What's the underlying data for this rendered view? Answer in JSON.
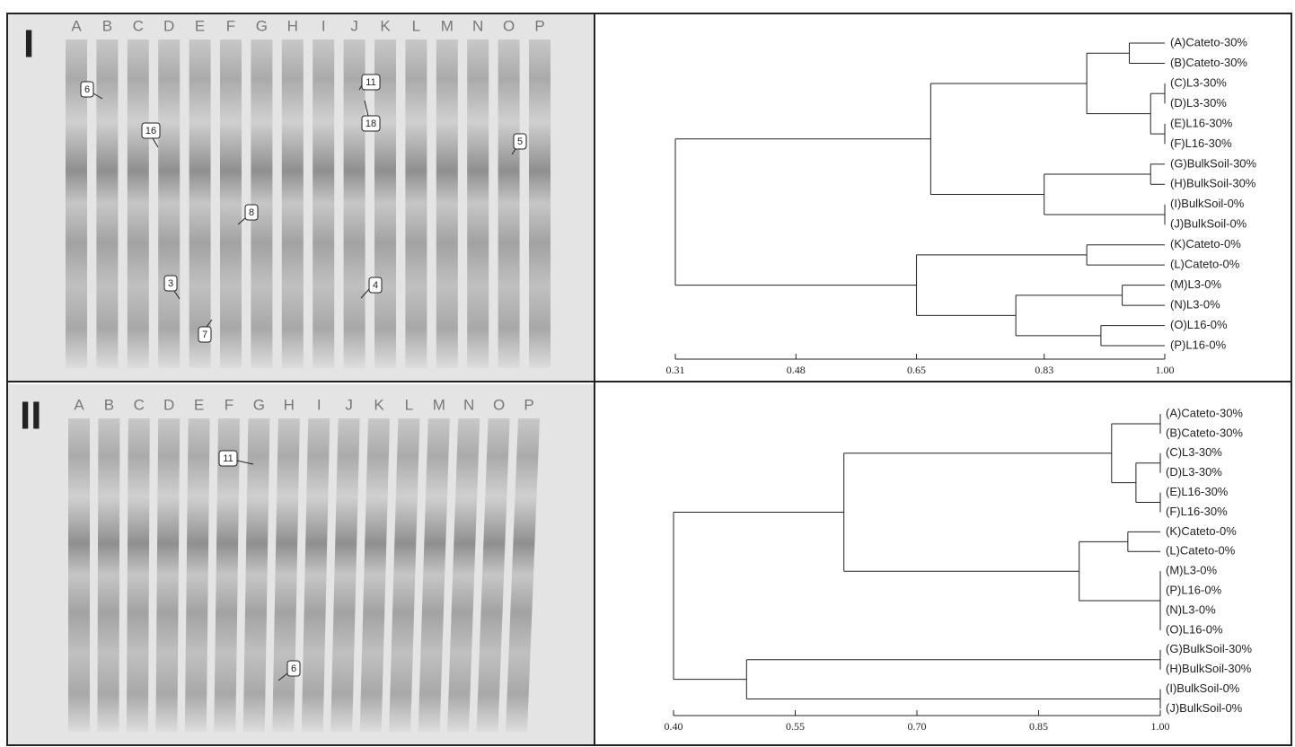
{
  "panels": [
    {
      "label": "I",
      "lanes": [
        "A",
        "B",
        "C",
        "D",
        "E",
        "F",
        "G",
        "H",
        "I",
        "J",
        "K",
        "L",
        "M",
        "N",
        "O",
        "P"
      ],
      "bands": [
        "6",
        "16",
        "11",
        "18",
        "5",
        "8",
        "3",
        "4",
        "7"
      ]
    },
    {
      "label": "II",
      "lanes": [
        "A",
        "B",
        "C",
        "D",
        "E",
        "F",
        "G",
        "H",
        "I",
        "J",
        "K",
        "L",
        "M",
        "N",
        "O",
        "P"
      ],
      "bands": [
        "11",
        "6"
      ]
    }
  ],
  "chart_data": [
    {
      "type": "dendrogram",
      "tree": {
        "value": 0.31,
        "children": [
          {
            "value": 0.67,
            "children": [
              {
                "value": 0.89,
                "children": [
                  {
                    "value": 0.95,
                    "children": [
                      "(A)Cateto-30%",
                      "(B)Cateto-30%"
                    ]
                  },
                  {
                    "value": 0.98,
                    "children": [
                      {
                        "value": 1,
                        "children": [
                          "(C)L3-30%",
                          "(D)L3-30%"
                        ]
                      },
                      {
                        "value": 1,
                        "children": [
                          "(E)L16-30%",
                          "(F)L16-30%"
                        ]
                      }
                    ]
                  }
                ]
              },
              {
                "value": 0.83,
                "children": [
                  {
                    "value": 0.98,
                    "children": [
                      "(G)BulkSoil-30%",
                      "(H)BulkSoil-30%"
                    ]
                  },
                  {
                    "value": 1,
                    "children": [
                      "(I)BulkSoil-0%",
                      "(J)BulkSoil-0%"
                    ]
                  }
                ]
              }
            ]
          },
          {
            "value": 0.65,
            "children": [
              {
                "value": 0.89,
                "children": [
                  "(K)Cateto-0%",
                  "(L)Cateto-0%"
                ]
              },
              {
                "value": 0.79,
                "children": [
                  {
                    "value": 0.94,
                    "children": [
                      "(M)L3-0%",
                      "(N)L3-0%"
                    ]
                  },
                  {
                    "value": 0.91,
                    "children": [
                      "(O)L16-0%",
                      "(P)L16-0%"
                    ]
                  }
                ]
              }
            ]
          }
        ]
      },
      "xlim": [
        0.31,
        1
      ],
      "xticks": [
        0.31,
        0.48,
        0.65,
        0.83,
        {
          "value": 1,
          "label": "1.00"
        }
      ]
    },
    {
      "type": "dendrogram",
      "tree": {
        "value": 0.4,
        "children": [
          {
            "value": 0.61,
            "children": [
              {
                "value": 0.94,
                "children": [
                  {
                    "value": 1,
                    "children": [
                      "(A)Cateto-30%",
                      "(B)Cateto-30%"
                    ]
                  },
                  {
                    "value": 0.97,
                    "children": [
                      {
                        "value": 1,
                        "children": [
                          "(C)L3-30%",
                          "(D)L3-30%"
                        ]
                      },
                      {
                        "value": 1,
                        "children": [
                          "(E)L16-30%",
                          "(F)L16-30%"
                        ]
                      }
                    ]
                  }
                ]
              },
              {
                "value": 0.9,
                "children": [
                  {
                    "value": 0.96,
                    "children": [
                      "(K)Cateto-0%",
                      "(L)Cateto-0%"
                    ]
                  },
                  {
                    "value": 1,
                    "children": [
                      "(M)L3-0%",
                      "(P)L16-0%",
                      "(N)L3-0%",
                      "(O)L16-0%"
                    ]
                  }
                ]
              }
            ]
          },
          {
            "value": 0.49,
            "children": [
              {
                "value": 1,
                "children": [
                  "(G)BulkSoil-30%",
                  "(H)BulkSoil-30%"
                ]
              },
              {
                "value": 1,
                "children": [
                  "(I)BulkSoil-0%",
                  "(J)BulkSoil-0%"
                ]
              }
            ]
          }
        ]
      },
      "xlim": [
        0.4,
        1
      ],
      "xticks": [
        {
          "value": 0.4,
          "label": "0.40"
        },
        0.55,
        {
          "value": 0.7,
          "label": "0.70"
        },
        0.85,
        {
          "value": 1,
          "label": "1.00"
        }
      ]
    }
  ]
}
